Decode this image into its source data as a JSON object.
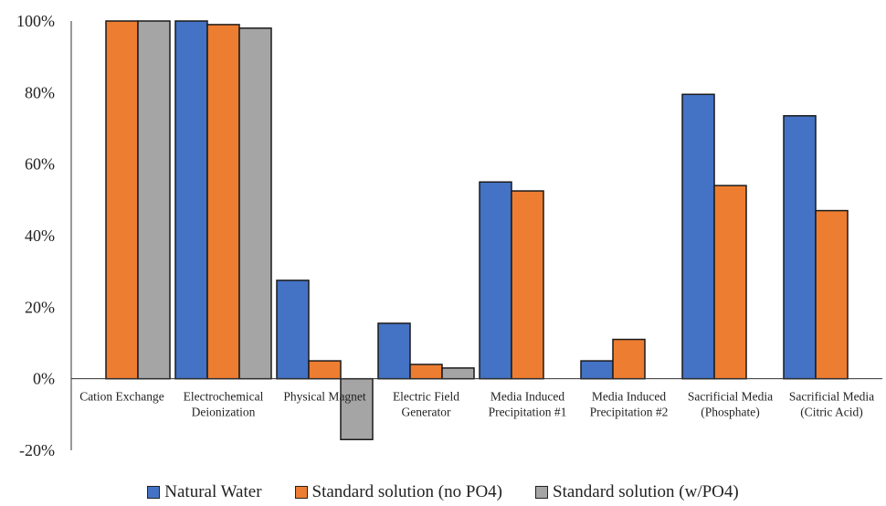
{
  "chart_data": {
    "type": "bar",
    "categories": [
      [
        "Cation Exchange"
      ],
      [
        "Electrochemical",
        "Deionization"
      ],
      [
        "Physical Magnet"
      ],
      [
        "Electric Field",
        "Generator"
      ],
      [
        "Media Induced",
        "Precipitation #1"
      ],
      [
        "Media Induced",
        "Precipitation #2"
      ],
      [
        "Sacrificial Media",
        "(Phosphate)"
      ],
      [
        "Sacrificial Media",
        "(Citric Acid)"
      ]
    ],
    "series": [
      {
        "name": "Natural Water",
        "color": "#4472C4",
        "values": [
          null,
          100,
          27.5,
          15.5,
          55,
          5,
          79.5,
          73.5
        ]
      },
      {
        "name": "Standard solution (no PO4)",
        "color": "#ED7D31",
        "values": [
          100,
          99,
          5,
          4,
          52.5,
          11,
          54,
          47
        ]
      },
      {
        "name": "Standard solution (w/PO4)",
        "color": "#A5A5A5",
        "values": [
          100,
          98,
          -17,
          3,
          null,
          null,
          null,
          null
        ]
      }
    ],
    "ylim": [
      -20,
      100
    ],
    "yticks": [
      -20,
      0,
      20,
      40,
      60,
      80,
      100
    ],
    "ytick_labels": [
      "-20%",
      "0%",
      "20%",
      "40%",
      "60%",
      "80%",
      "100%"
    ],
    "title": "",
    "xlabel": "",
    "ylabel": "",
    "legend_position": "bottom",
    "grid": false
  }
}
